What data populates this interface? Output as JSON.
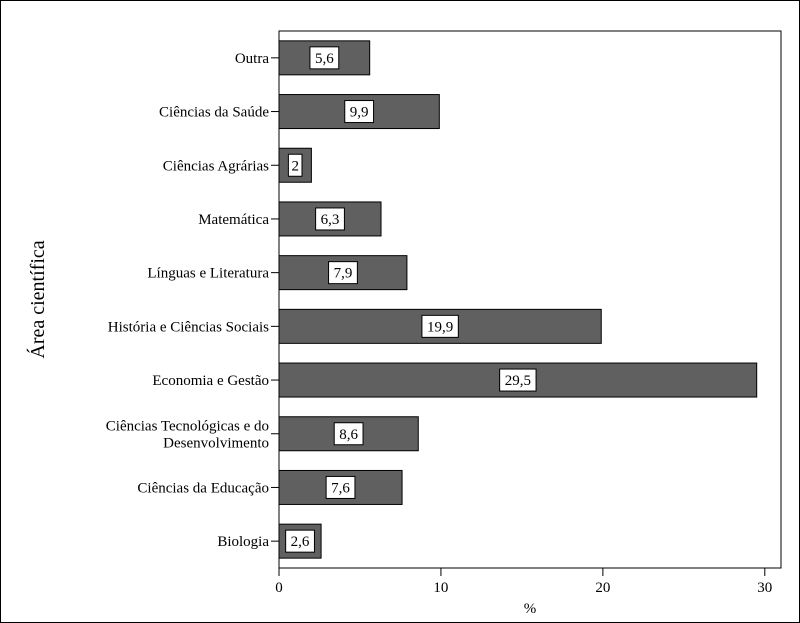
{
  "chart_data": {
    "type": "bar",
    "orientation": "horizontal",
    "categories": [
      "Biologia",
      "Ciências da Educação",
      "Ciências Tecnológicas e do Desenvolvimento",
      "Economia e Gestão",
      "História e Ciências Sociais",
      "Línguas e Literatura",
      "Matemática",
      "Ciências Agrárias",
      "Ciências da Saúde",
      "Outra"
    ],
    "category_lines": [
      [
        "Biologia"
      ],
      [
        "Ciências da Educação"
      ],
      [
        "Ciências Tecnológicas e do",
        "Desenvolvimento"
      ],
      [
        "Economia e Gestão"
      ],
      [
        "História e Ciências Sociais"
      ],
      [
        "Línguas e Literatura"
      ],
      [
        "Matemática"
      ],
      [
        "Ciências Agrárias"
      ],
      [
        "Ciências da Saúde"
      ],
      [
        "Outra"
      ]
    ],
    "values": [
      2.6,
      7.6,
      8.6,
      29.5,
      19.9,
      7.9,
      6.3,
      2,
      9.9,
      5.6
    ],
    "data_labels": [
      "2,6",
      "7,6",
      "8,6",
      "29,5",
      "19,9",
      "7,9",
      "6,3",
      "2",
      "9,9",
      "5,6"
    ],
    "title": "",
    "xlabel": "%",
    "ylabel": "Área científica",
    "xlim": [
      0,
      31
    ],
    "x_ticks": [
      0,
      10,
      20,
      30
    ],
    "x_tick_labels": [
      "0",
      "10",
      "20",
      "30"
    ],
    "grid": false,
    "legend": "none",
    "bar_color": "#606060",
    "bar_edge_color": "#000000",
    "label_box_color": "#ffffff"
  }
}
